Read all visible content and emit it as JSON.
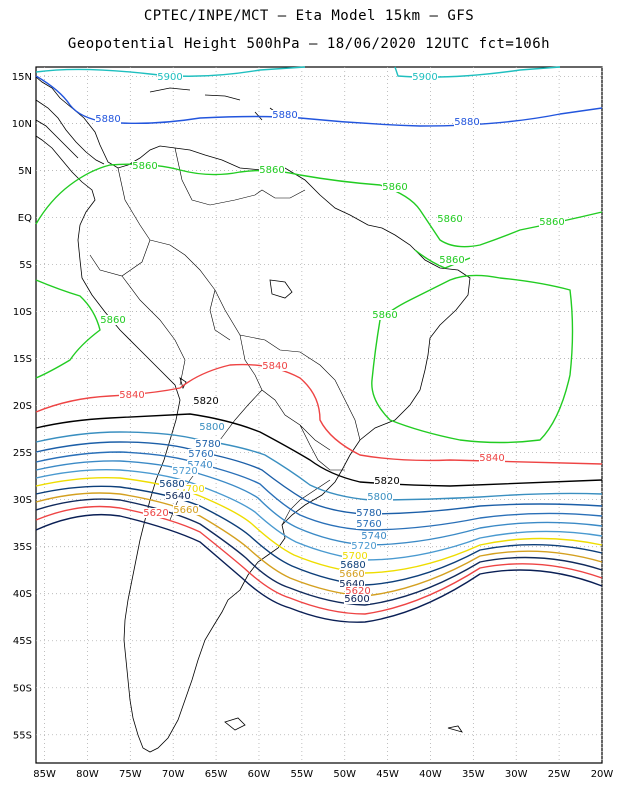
{
  "header": {
    "line1": "CPTEC/INPE/MCT –  Eta Model 15km – GFS",
    "line2": "Geopotential Height 500hPa – 18/06/2020 12UTC fct=106h"
  },
  "axes": {
    "lat_labels": [
      "15N",
      "10N",
      "5N",
      "EQ",
      "5S",
      "10S",
      "15S",
      "20S",
      "25S",
      "30S",
      "35S",
      "40S",
      "45S",
      "50S",
      "55S"
    ],
    "lon_labels": [
      "85W",
      "80W",
      "75W",
      "70W",
      "65W",
      "60W",
      "55W",
      "50W",
      "45W",
      "40W",
      "35W",
      "30W",
      "25W",
      "20W"
    ],
    "lat_range": [
      -58,
      16
    ],
    "lon_range": [
      -86,
      -20
    ]
  },
  "contours": [
    {
      "value": 5900,
      "color": "#1fbfbf",
      "labels": [
        "5900",
        "5900"
      ]
    },
    {
      "value": 5880,
      "color": "#2255dd",
      "labels": [
        "5880",
        "5880",
        "5880"
      ]
    },
    {
      "value": 5860,
      "color": "#22cc22",
      "labels": [
        "5860",
        "5860",
        "5860",
        "5860",
        "5860",
        "5860",
        "5860",
        "5860"
      ]
    },
    {
      "value": 5840,
      "color": "#ee4444",
      "labels": [
        "5840",
        "5840",
        "5840"
      ]
    },
    {
      "value": 5820,
      "color": "#000000",
      "labels": [
        "5820",
        "5820"
      ]
    },
    {
      "value": 5800,
      "color": "#3a8fc0",
      "labels": [
        "5800",
        "5800"
      ]
    },
    {
      "value": 5780,
      "color": "#1c5fa8",
      "labels": [
        "5780",
        "5780"
      ]
    },
    {
      "value": 5760,
      "color": "#2a70b8",
      "labels": [
        "5760",
        "5760"
      ]
    },
    {
      "value": 5740,
      "color": "#3b8ac6",
      "labels": [
        "5740",
        "5740"
      ]
    },
    {
      "value": 5720,
      "color": "#4a9ad0",
      "labels": [
        "5720",
        "5720"
      ]
    },
    {
      "value": 5700,
      "color": "#eedd00",
      "labels": [
        "5700",
        "5700"
      ]
    },
    {
      "value": 5680,
      "color": "#0d3f7a",
      "labels": [
        "5680",
        "5680"
      ]
    },
    {
      "value": 5660,
      "color": "#d4a020",
      "labels": [
        "5660",
        "5660"
      ]
    },
    {
      "value": 5640,
      "color": "#112a5c",
      "labels": [
        "5640",
        "5640"
      ]
    },
    {
      "value": 5620,
      "color": "#ee4444",
      "labels": [
        "5620",
        "5620"
      ]
    },
    {
      "value": 5600,
      "color": "#0a1f55",
      "labels": [
        "5600"
      ]
    }
  ]
}
